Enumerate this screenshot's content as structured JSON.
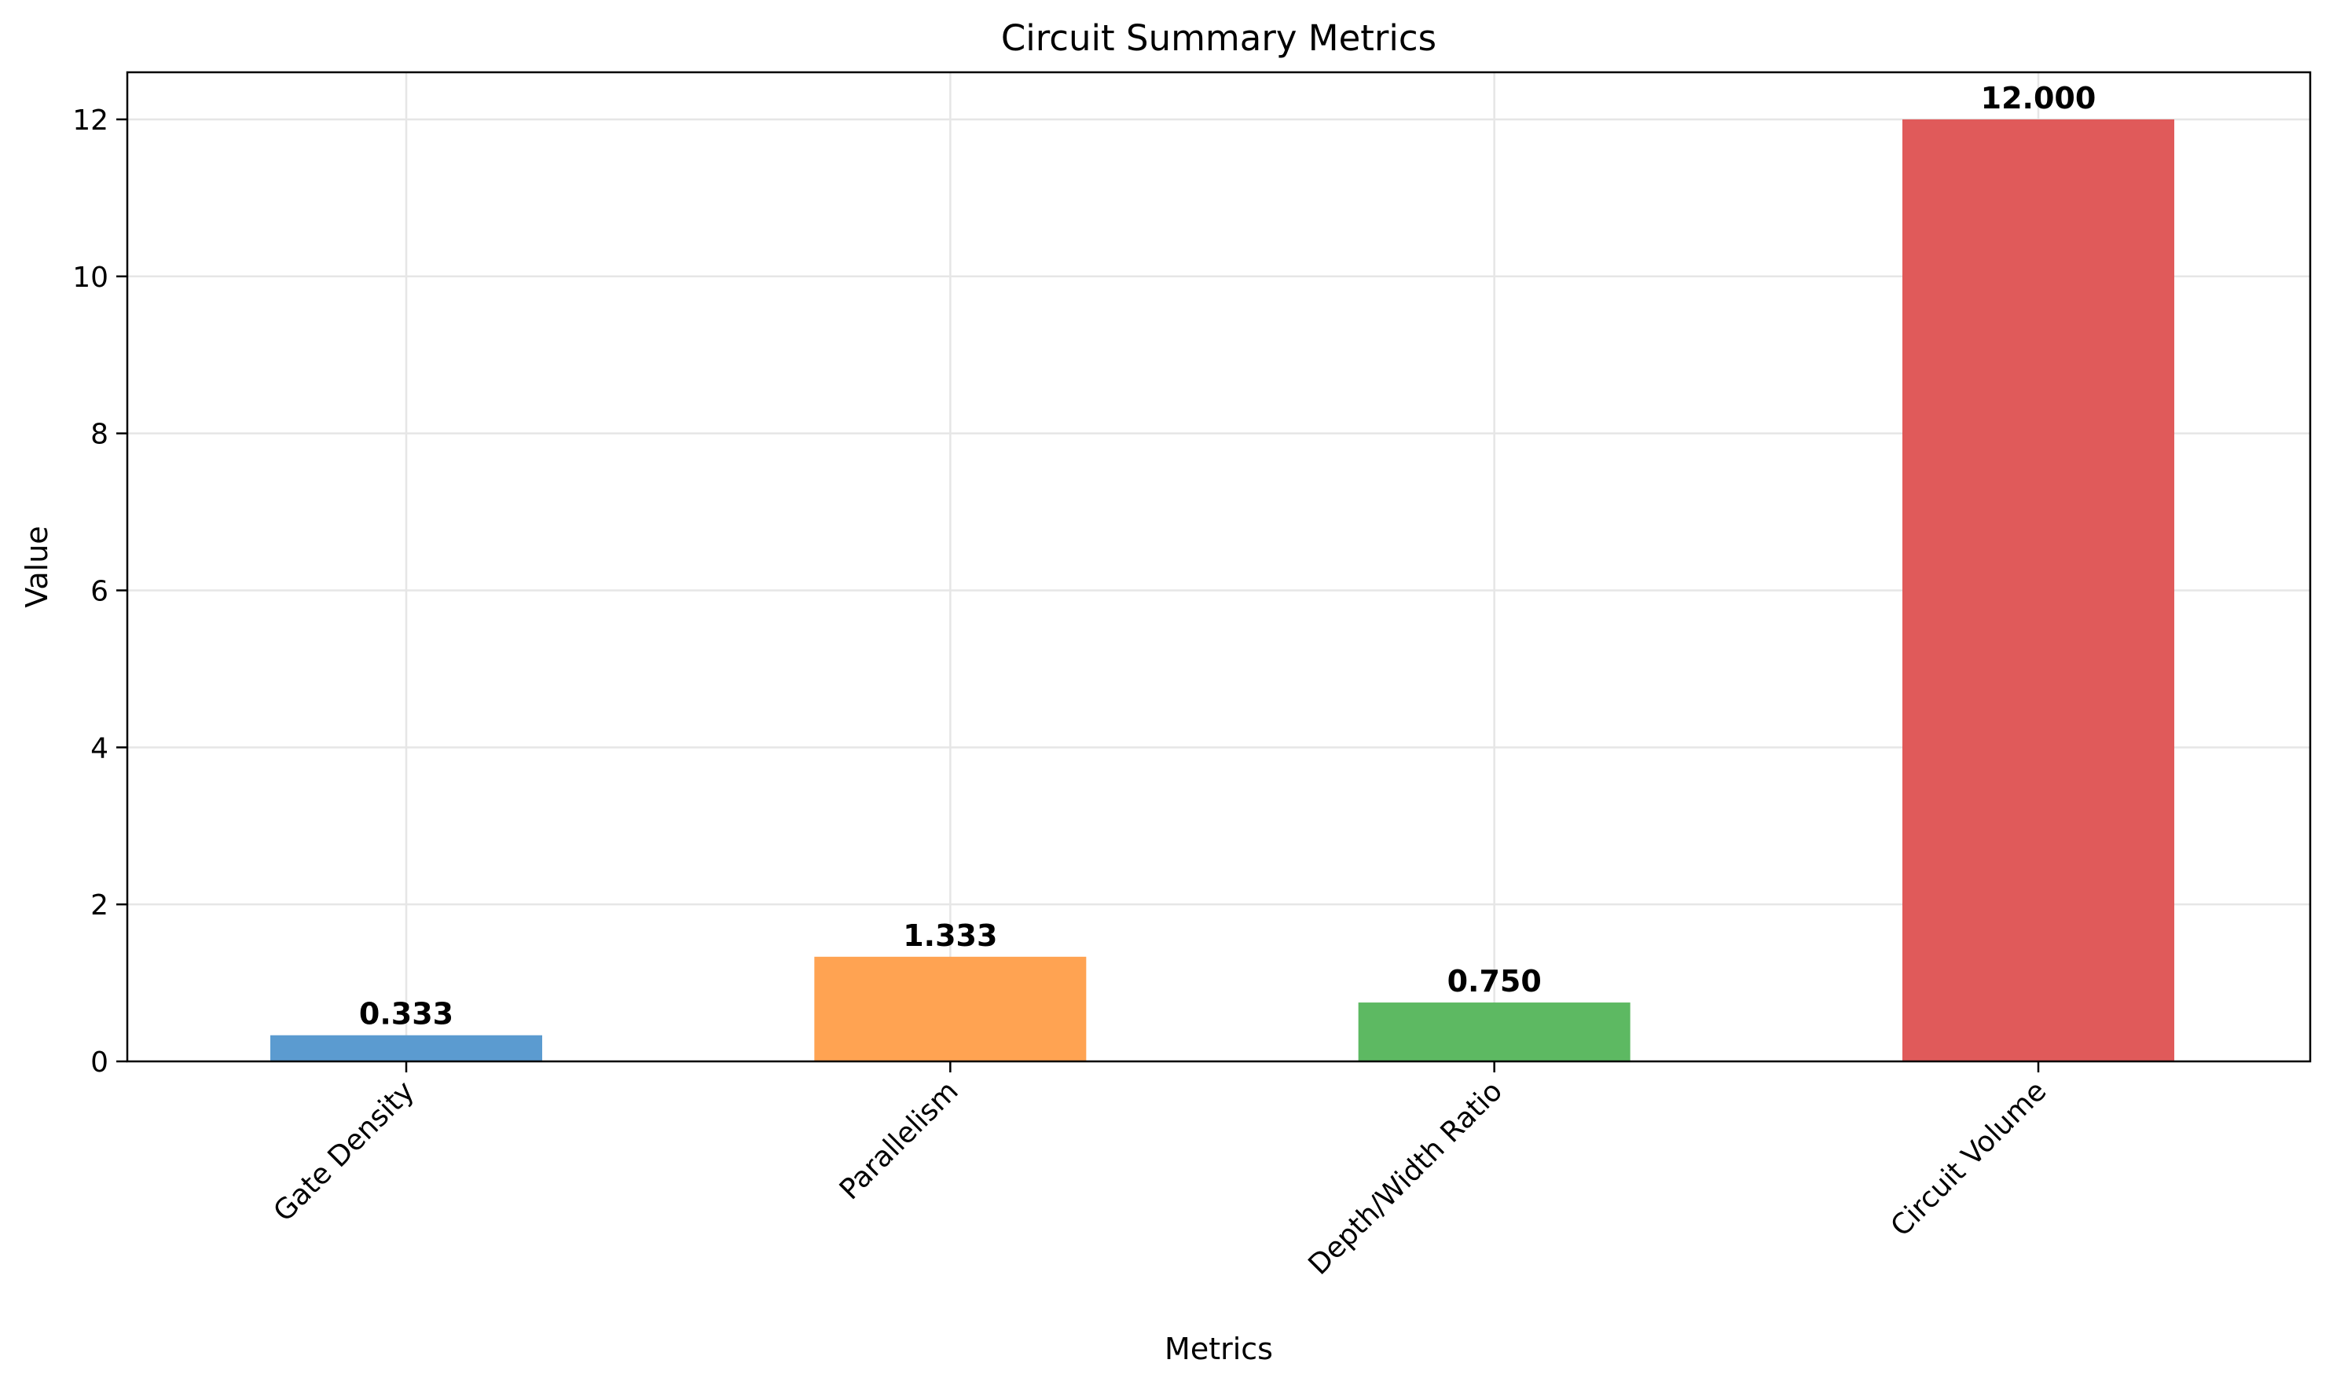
{
  "chart_data": {
    "type": "bar",
    "title": "Circuit Summary Metrics",
    "xlabel": "Metrics",
    "ylabel": "Value",
    "categories": [
      "Gate Density",
      "Parallelism",
      "Depth/Width Ratio",
      "Circuit Volume"
    ],
    "values": [
      0.333,
      1.333,
      0.75,
      12.0
    ],
    "data_labels": [
      "0.333",
      "1.333",
      "0.750",
      "12.000"
    ],
    "colors": [
      "#5b9bd0",
      "#ffa352",
      "#5db962",
      "#e05a5a"
    ],
    "ylim": [
      0,
      12.6
    ],
    "yticks": [
      0,
      2,
      4,
      6,
      8,
      10,
      12
    ],
    "grid": true,
    "xtick_rotation": 45
  }
}
